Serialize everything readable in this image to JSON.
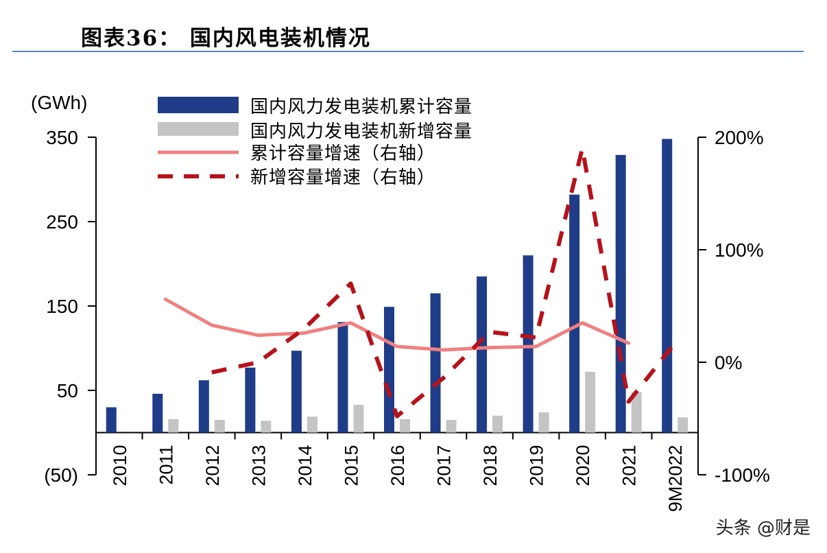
{
  "figure": {
    "title": "图表36： 国内风电装机情况"
  },
  "watermark": "头条 @财是",
  "colors": {
    "cumulative_bar": "#1f3c88",
    "new_bar": "#c4c4c4",
    "cumulative_growth_line": "#f08080",
    "new_growth_line": "#b5121b",
    "axis": "#000000",
    "title_rule": "#5b87b5"
  },
  "chart_data": {
    "type": "bar",
    "categories": [
      "2010",
      "2011",
      "2012",
      "2013",
      "2014",
      "2015",
      "2016",
      "2017",
      "2018",
      "2019",
      "2020",
      "2021",
      "9M2022"
    ],
    "y_unit_label": "(GWh)",
    "y_left": {
      "ylim": [
        -50,
        350
      ],
      "ticks": [
        350,
        250,
        150,
        50,
        -50
      ],
      "tick_labels": [
        "350",
        "250",
        "150",
        "50",
        "(50)"
      ]
    },
    "y_right": {
      "ylim": [
        -100,
        200
      ],
      "ticks": [
        200,
        100,
        0,
        -100
      ],
      "tick_labels": [
        "200%",
        "100%",
        "0%",
        "-100%"
      ]
    },
    "grid": false,
    "legend_position": "top-left",
    "series": [
      {
        "name": "国内风力发电装机累计容量",
        "type": "bar",
        "axis": "left",
        "values": [
          30,
          46,
          62,
          77,
          97,
          131,
          149,
          165,
          185,
          210,
          282,
          329,
          348
        ]
      },
      {
        "name": "国内风力发电装机新增容量",
        "type": "bar",
        "axis": "left",
        "values": [
          null,
          16,
          15,
          14,
          19,
          33,
          16,
          15,
          20,
          24,
          72,
          48,
          18
        ]
      },
      {
        "name": "累计容量增速（右轴）",
        "type": "line",
        "style": "solid",
        "axis": "right",
        "values": [
          null,
          56,
          33,
          24,
          26,
          35,
          14,
          11,
          13,
          14,
          35,
          17,
          null
        ]
      },
      {
        "name": "新增容量增速（右轴）",
        "type": "line",
        "style": "dashed",
        "axis": "right",
        "values": [
          null,
          null,
          -9,
          0,
          30,
          70,
          -48,
          -14,
          27,
          22,
          190,
          -35,
          17
        ]
      }
    ]
  }
}
